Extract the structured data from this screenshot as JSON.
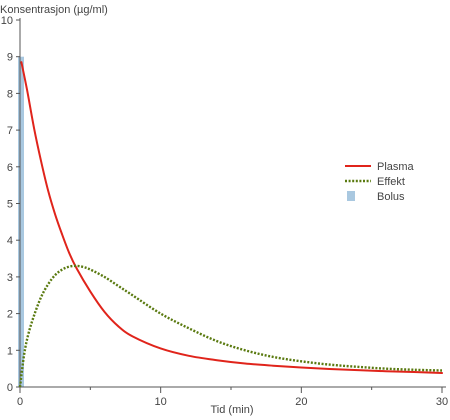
{
  "chart_data": {
    "type": "line",
    "title": "",
    "ylabel": "Konsentrasjon (µg/ml)",
    "xlabel": "Tid (min)",
    "xlim": [
      0,
      30
    ],
    "ylim": [
      0,
      10
    ],
    "x_ticks": [
      "0",
      "10",
      "20",
      "30"
    ],
    "y_ticks": [
      "0",
      "1",
      "2",
      "3",
      "4",
      "5",
      "6",
      "7",
      "8",
      "9",
      "10"
    ],
    "grid": false,
    "legend_position": "right",
    "series": [
      {
        "name": "Plasma",
        "color": "#e0241b",
        "style": "solid",
        "x": [
          0.1,
          0.5,
          1,
          1.5,
          2,
          2.5,
          3,
          3.5,
          4,
          5,
          6,
          7,
          8,
          10,
          12,
          14,
          16,
          18,
          20,
          22,
          24,
          26,
          28,
          30
        ],
        "y": [
          8.85,
          8.1,
          7.05,
          6.15,
          5.35,
          4.7,
          4.15,
          3.65,
          3.25,
          2.6,
          2.05,
          1.65,
          1.38,
          1.05,
          0.85,
          0.73,
          0.64,
          0.58,
          0.53,
          0.49,
          0.46,
          0.43,
          0.41,
          0.38
        ]
      },
      {
        "name": "Effekt",
        "color": "#5a7a10",
        "style": "dotted",
        "x": [
          0,
          0.3,
          0.6,
          1,
          1.5,
          2,
          2.5,
          3,
          3.5,
          4,
          4.5,
          5,
          6,
          7,
          8,
          10,
          12,
          14,
          16,
          18,
          20,
          22,
          24,
          26,
          28,
          30
        ],
        "y": [
          0,
          0.9,
          1.45,
          1.95,
          2.45,
          2.8,
          3.05,
          3.2,
          3.28,
          3.3,
          3.27,
          3.2,
          3.0,
          2.75,
          2.5,
          2.0,
          1.6,
          1.25,
          1.0,
          0.82,
          0.7,
          0.61,
          0.55,
          0.5,
          0.47,
          0.45
        ]
      },
      {
        "name": "Bolus",
        "color": "#a9c8e0",
        "style": "bar",
        "x": [
          0.2
        ],
        "y": [
          9
        ]
      }
    ]
  }
}
